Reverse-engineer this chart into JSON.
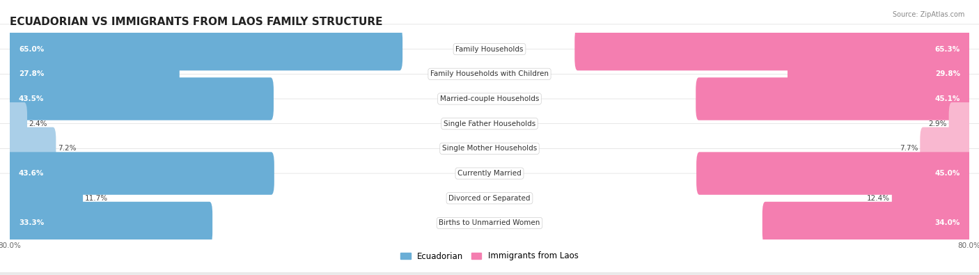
{
  "title": "ECUADORIAN VS IMMIGRANTS FROM LAOS FAMILY STRUCTURE",
  "source": "Source: ZipAtlas.com",
  "categories": [
    "Family Households",
    "Family Households with Children",
    "Married-couple Households",
    "Single Father Households",
    "Single Mother Households",
    "Currently Married",
    "Divorced or Separated",
    "Births to Unmarried Women"
  ],
  "ecuadorian_values": [
    65.0,
    27.8,
    43.5,
    2.4,
    7.2,
    43.6,
    11.7,
    33.3
  ],
  "laos_values": [
    65.3,
    29.8,
    45.1,
    2.9,
    7.7,
    45.0,
    12.4,
    34.0
  ],
  "max_val": 80.0,
  "ecuadorian_color": "#6aaed6",
  "laos_color": "#f47eb0",
  "ecuadorian_light_color": "#aacfe8",
  "laos_light_color": "#f9b8d0",
  "background_color": "#ebebeb",
  "row_even_color": "#f5f5f5",
  "row_odd_color": "#e8e8e8",
  "title_fontsize": 11,
  "label_fontsize": 7.5,
  "value_fontsize": 7.5,
  "legend_fontsize": 8.5,
  "axis_label_fontsize": 7.5
}
